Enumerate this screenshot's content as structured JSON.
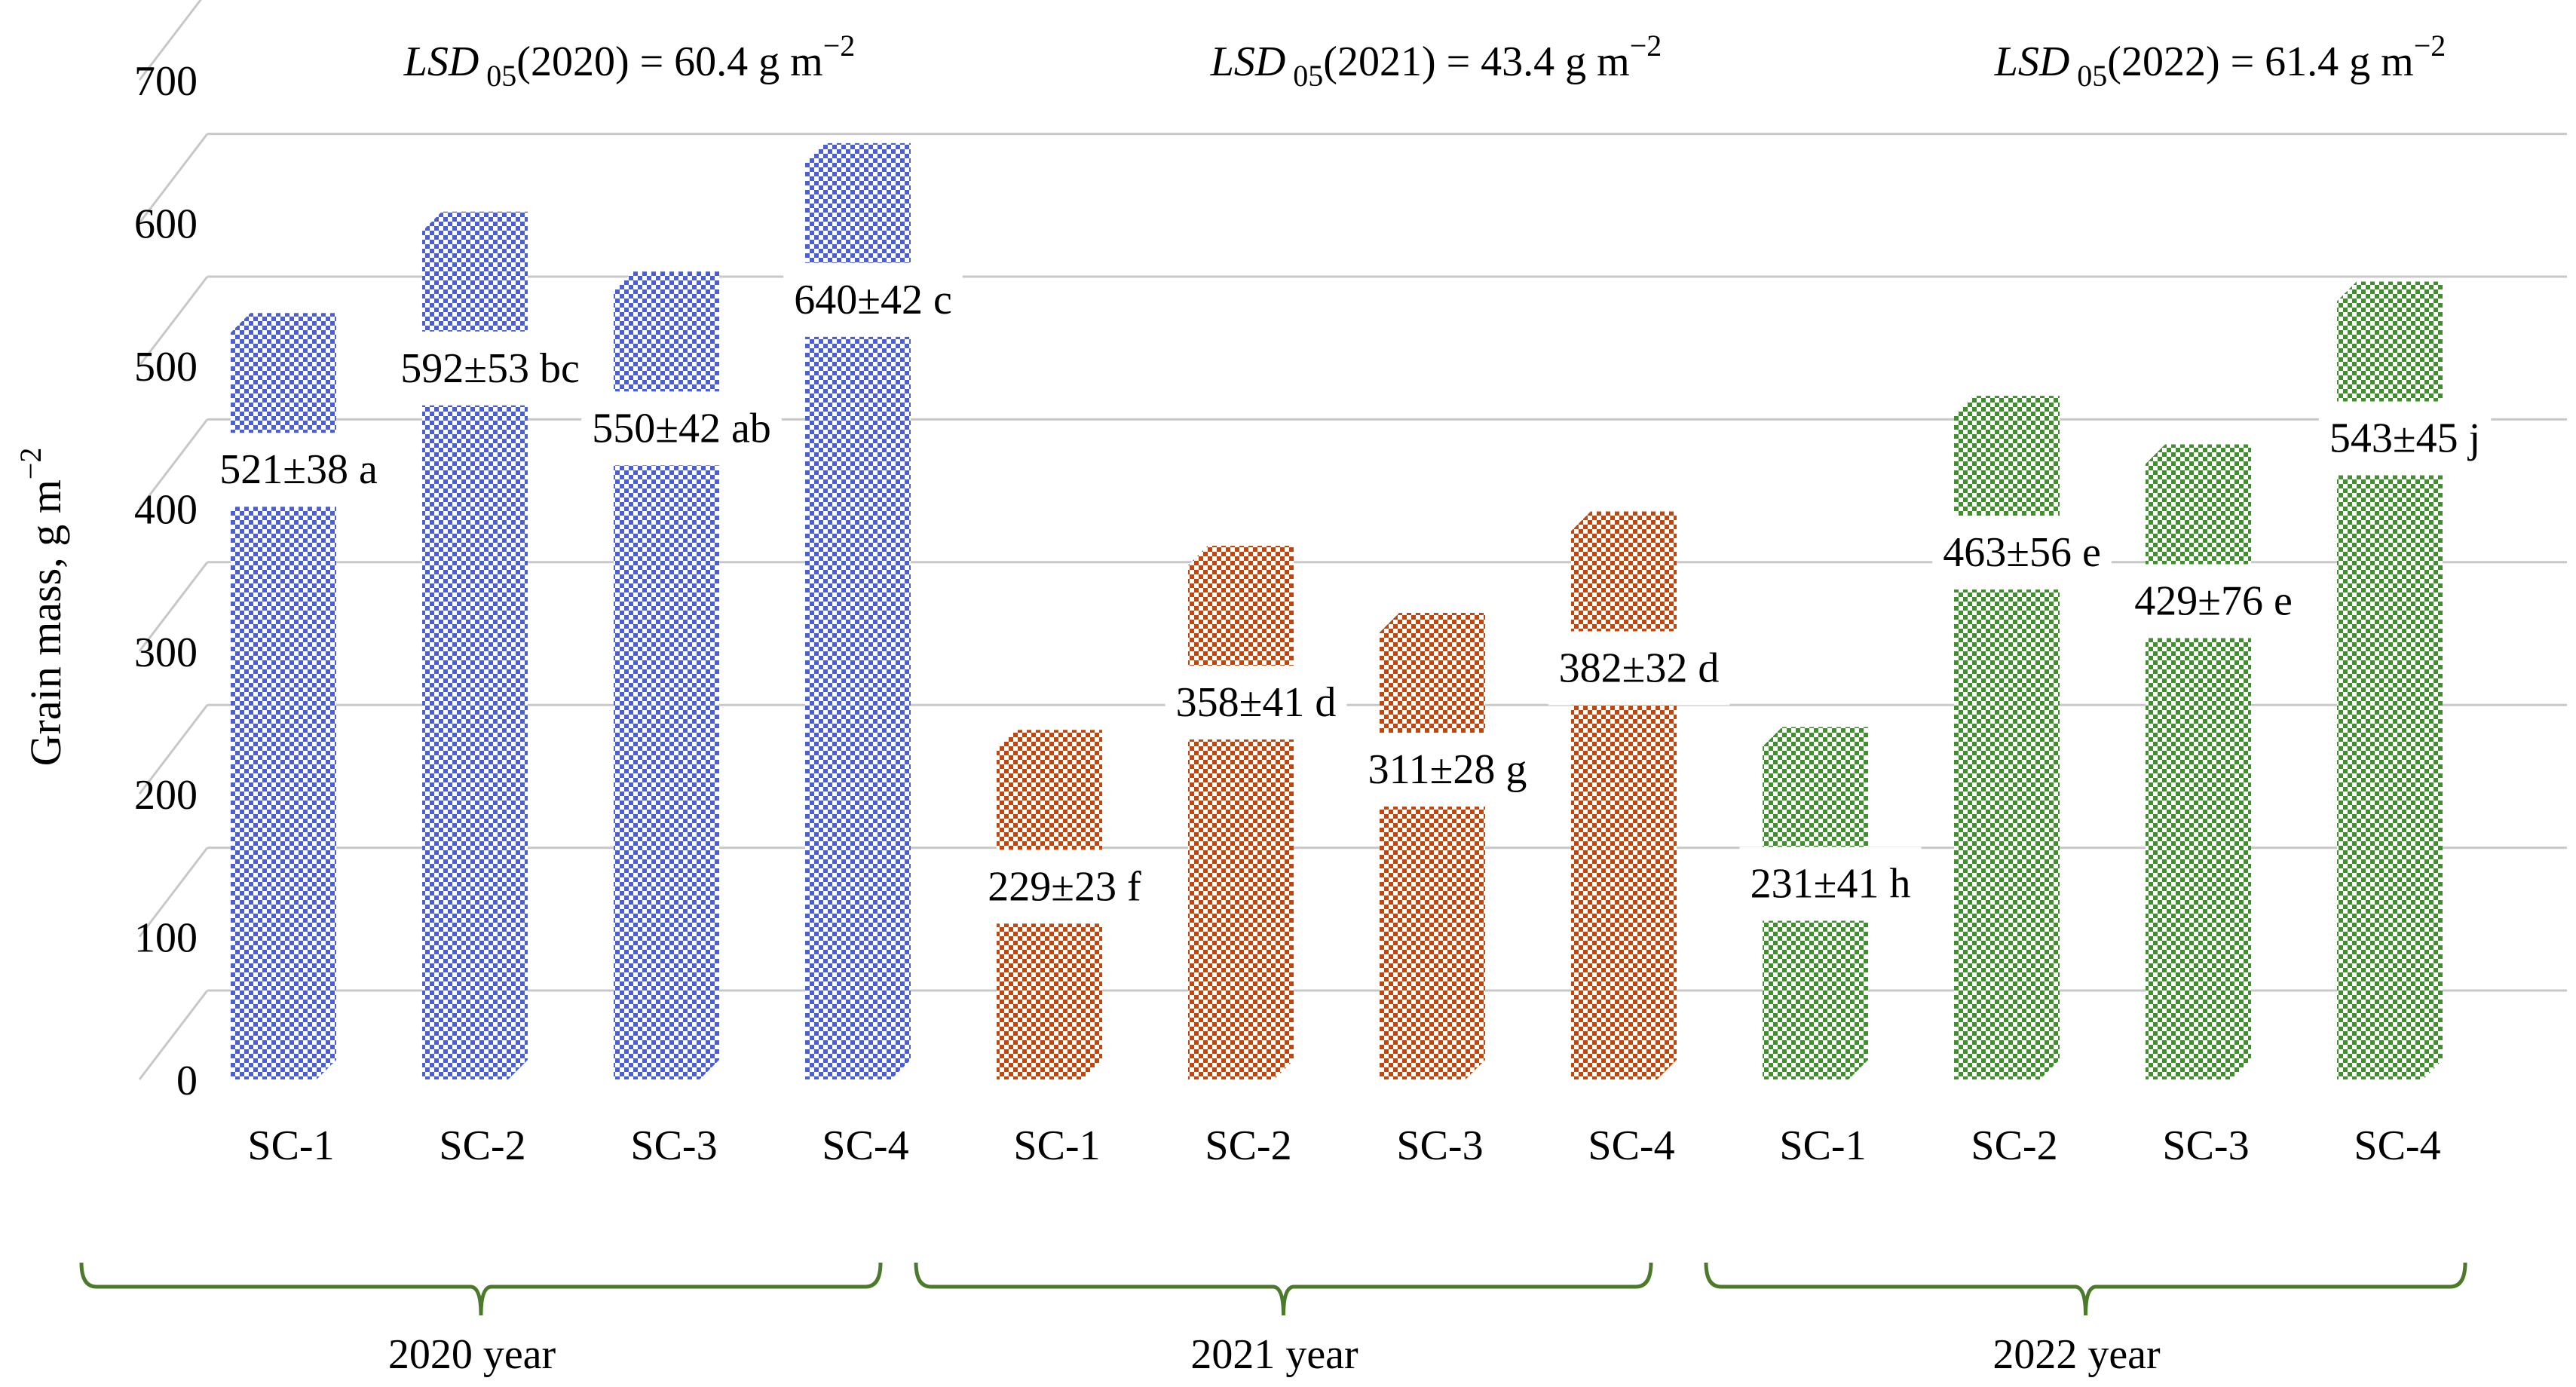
{
  "chart_data": {
    "type": "bar",
    "ylabel": "Grain mass, g m",
    "ylabel_sup": "−2",
    "ylim": [
      0,
      700
    ],
    "yticks": [
      0,
      100,
      200,
      300,
      400,
      500,
      600,
      700
    ],
    "grid": true,
    "lsd": [
      {
        "prefix": "LSD",
        "sub": "05",
        "text": "(2020) = 60.4 g m",
        "sup": "−2"
      },
      {
        "prefix": "LSD",
        "sub": "05",
        "text": "(2021) = 43.4 g m",
        "sup": "−2"
      },
      {
        "prefix": "LSD",
        "sub": "05",
        "text": "(2022) = 61.4 g m",
        "sup": "−2"
      }
    ],
    "groups": [
      {
        "name": "2020 year",
        "color": "#4a5fd6",
        "categories": [
          "SC-1",
          "SC-2",
          "SC-3",
          "SC-4"
        ],
        "values": [
          521,
          592,
          550,
          640
        ],
        "labels": [
          "521±38 a",
          "592±53 bc",
          "550±42 ab",
          "640±42 c"
        ]
      },
      {
        "name": "2021 year",
        "color": "#c4450a",
        "categories": [
          "SC-1",
          "SC-2",
          "SC-3",
          "SC-4"
        ],
        "values": [
          229,
          358,
          311,
          382
        ],
        "labels": [
          "229±23 f",
          "358±41 d",
          "311±28 g",
          "382±32 d"
        ]
      },
      {
        "name": "2022 year",
        "color": "#3f8f2c",
        "categories": [
          "SC-1",
          "SC-2",
          "SC-3",
          "SC-4"
        ],
        "values": [
          231,
          463,
          429,
          543
        ],
        "labels": [
          "231±41 h",
          "463±56 e",
          "429±76 e",
          "543±45 j"
        ]
      }
    ],
    "bracket_color": "#4a7a2a"
  }
}
